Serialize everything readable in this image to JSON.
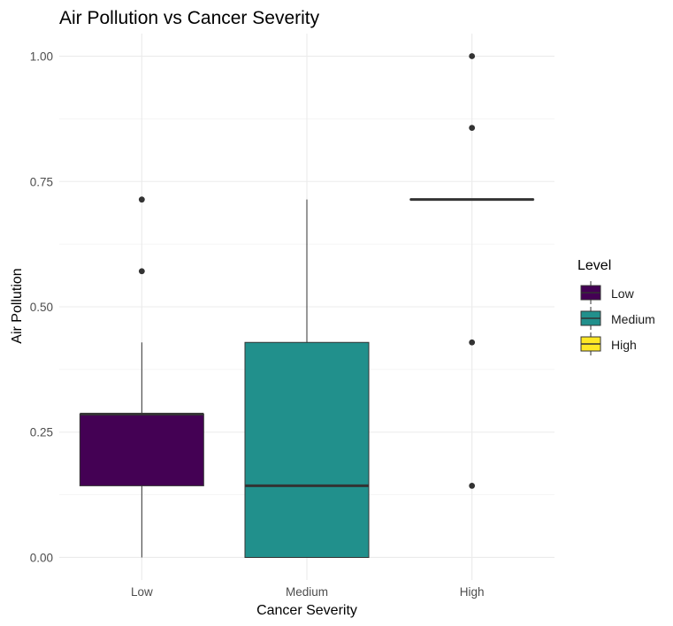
{
  "chart_data": {
    "type": "boxplot",
    "title": "Air Pollution vs Cancer Severity",
    "xlabel": "Cancer Severity",
    "ylabel": "Air Pollution",
    "categories": [
      "Low",
      "Medium",
      "High"
    ],
    "ylim": [
      -0.045,
      1.045
    ],
    "yticks": [
      0.0,
      0.25,
      0.5,
      0.75,
      1.0
    ],
    "ytick_labels": [
      "0.00",
      "0.25",
      "0.50",
      "0.75",
      "1.00"
    ],
    "grid": true,
    "legend": {
      "title": "Level",
      "position": "right",
      "entries": [
        "Low",
        "Medium",
        "High"
      ]
    },
    "boxes": [
      {
        "category": "Low",
        "color": "#440154",
        "q1": 0.143,
        "median": 0.286,
        "q3": 0.286,
        "whisker_low": 0.0,
        "whisker_high": 0.429,
        "outliers": [
          0.571,
          0.714
        ]
      },
      {
        "category": "Medium",
        "color": "#21908C",
        "q1": 0.0,
        "median": 0.143,
        "q3": 0.429,
        "whisker_low": 0.0,
        "whisker_high": 0.714,
        "outliers": []
      },
      {
        "category": "High",
        "color": "#FDE725",
        "q1": 0.714,
        "median": 0.714,
        "q3": 0.714,
        "whisker_low": 0.714,
        "whisker_high": 0.714,
        "outliers": [
          0.143,
          0.429,
          0.857,
          1.0
        ]
      }
    ]
  }
}
